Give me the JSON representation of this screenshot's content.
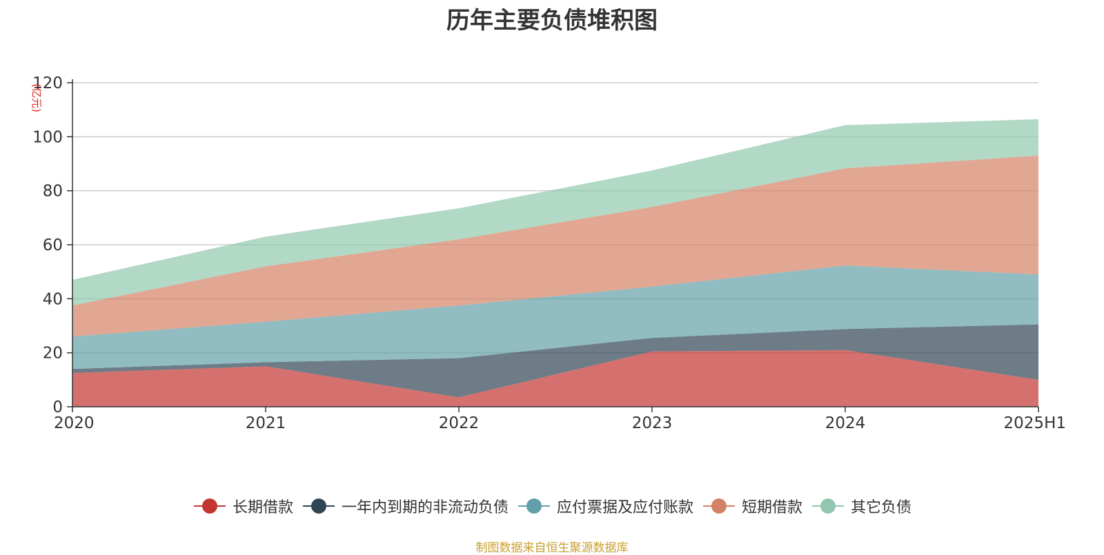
{
  "chart_data": {
    "type": "area",
    "stacked": true,
    "title": "历年主要负债堆积图",
    "ylabel": "(亿元)",
    "xlabel": "",
    "categories": [
      "2020",
      "2021",
      "2022",
      "2023",
      "2024",
      "2025H1"
    ],
    "ylim": [
      0,
      120
    ],
    "yticks": [
      0,
      20,
      40,
      60,
      80,
      100,
      120
    ],
    "grid": true,
    "legend_position": "bottom",
    "series": [
      {
        "name": "长期借款",
        "color": "#c23531",
        "values": [
          12.5,
          15.0,
          3.5,
          20.5,
          21.0,
          10.0
        ]
      },
      {
        "name": "一年内到期的非流动负债",
        "color": "#2f4554",
        "values": [
          1.5,
          1.5,
          14.5,
          5.0,
          7.8,
          20.5
        ]
      },
      {
        "name": "应付票据及应付账款",
        "color": "#61a0a8",
        "values": [
          12.0,
          15.0,
          19.5,
          19.0,
          23.5,
          18.5
        ]
      },
      {
        "name": "短期借款",
        "color": "#d48265",
        "values": [
          11.5,
          20.5,
          24.5,
          29.5,
          36.0,
          44.0
        ]
      },
      {
        "name": "其它负债",
        "color": "#91c7ae",
        "values": [
          9.5,
          11.0,
          11.5,
          13.5,
          16.0,
          13.5
        ]
      }
    ]
  },
  "footer": {
    "source": "制图数据来自恒生聚源数据库"
  }
}
